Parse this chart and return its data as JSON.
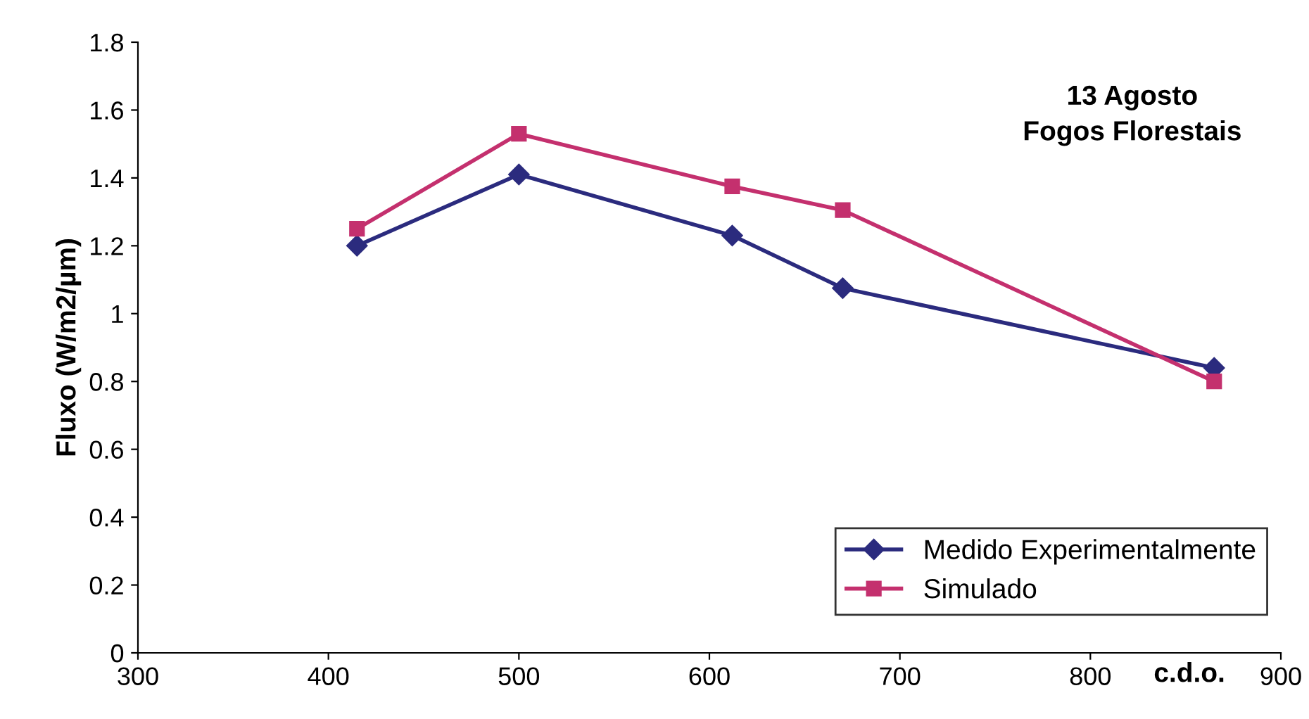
{
  "chart_data": {
    "type": "line",
    "xlabel": "c.d.o.",
    "ylabel": "Fluxo (W/m2/µm)",
    "annotations": [
      "13 Agosto\nFogos Florestais"
    ],
    "x": [
      415,
      500,
      612,
      670,
      865
    ],
    "series": [
      {
        "name": "Medido Experimentalmente",
        "color": "#2b2b7e",
        "marker": "diamond",
        "values": [
          1.2,
          1.41,
          1.23,
          1.075,
          0.84
        ]
      },
      {
        "name": "Simulado",
        "color": "#c4306e",
        "marker": "square",
        "values": [
          1.25,
          1.53,
          1.375,
          1.305,
          0.8
        ]
      }
    ],
    "xlim": [
      300,
      900
    ],
    "xticks": [
      300,
      400,
      500,
      600,
      700,
      800,
      900
    ],
    "ylim": [
      0,
      1.8
    ],
    "yticks": [
      0,
      {
        "value": 0.2,
        "label": "0.2"
      },
      {
        "value": 0.4,
        "label": "0.4"
      },
      {
        "value": 0.6,
        "label": "0.6"
      },
      {
        "value": 0.8,
        "label": "0.8"
      },
      1,
      {
        "value": 1.2,
        "label": "1.2"
      },
      {
        "value": 1.4,
        "label": "1.4"
      },
      {
        "value": 1.6,
        "label": "1.6"
      },
      {
        "value": 1.8,
        "label": "1.8"
      }
    ],
    "grid": false,
    "legend": "bottom right",
    "line_style": "solid"
  }
}
